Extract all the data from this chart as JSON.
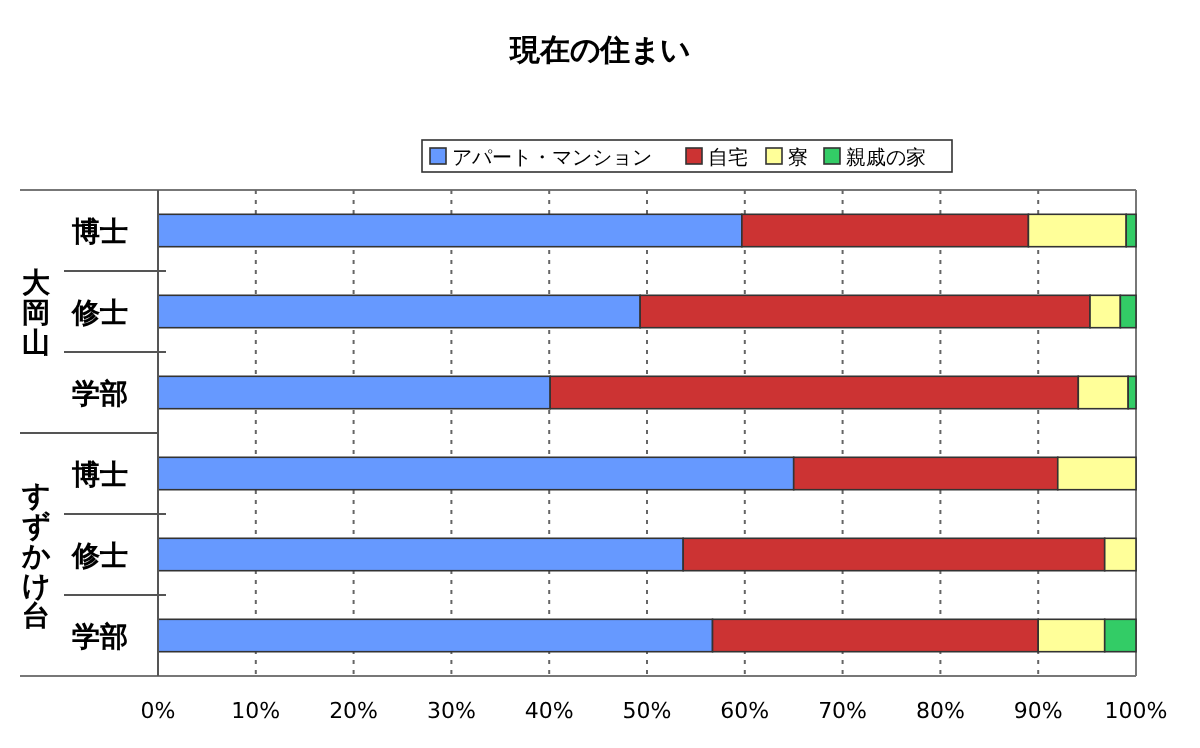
{
  "chart_data": {
    "type": "bar",
    "orientation": "horizontal",
    "stacked": true,
    "title": "現在の住まい",
    "categories": [
      "博士",
      "修士",
      "学部",
      "博士",
      "修士",
      "学部"
    ],
    "series": [
      {
        "name": "アパート・マンション",
        "color": "#6699ff",
        "values": [
          59.7,
          49.3,
          40.1,
          65.0,
          53.7,
          56.7
        ]
      },
      {
        "name": "自宅",
        "color": "#cc3333",
        "values": [
          29.3,
          46.0,
          54.0,
          27.0,
          43.1,
          33.3
        ]
      },
      {
        "name": "寮",
        "color": "#ffff99",
        "values": [
          10.0,
          3.1,
          5.1,
          8.0,
          3.2,
          6.8
        ]
      },
      {
        "name": "親戚の家",
        "color": "#33cc66",
        "values": [
          1.0,
          1.6,
          0.8,
          0,
          0,
          3.2
        ]
      }
    ],
    "annotations": [
      "大岡山",
      "すずかけ台"
    ],
    "xlim": [
      0,
      100
    ],
    "xticks": [
      {
        "value": 0,
        "label": "0%"
      },
      {
        "value": 10,
        "label": "10%"
      },
      {
        "value": 20,
        "label": "20%"
      },
      {
        "value": 30,
        "label": "30%"
      },
      {
        "value": 40,
        "label": "40%"
      },
      {
        "value": 50,
        "label": "50%"
      },
      {
        "value": 60,
        "label": "60%"
      },
      {
        "value": 70,
        "label": "70%"
      },
      {
        "value": 80,
        "label": "80%"
      },
      {
        "value": 90,
        "label": "90%"
      },
      {
        "value": 100,
        "label": "100%"
      }
    ],
    "grid": "x",
    "legend": "top"
  }
}
